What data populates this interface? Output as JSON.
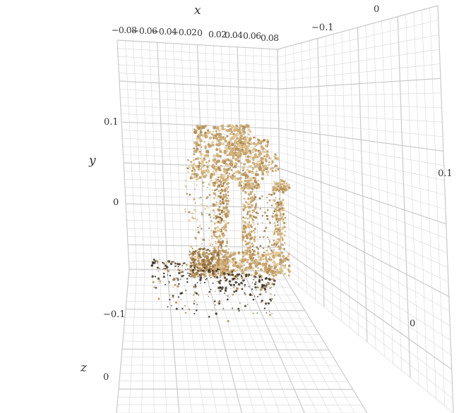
{
  "chart_data": {
    "type": "scatter",
    "subtype": "3d-point-cloud",
    "title": "",
    "axes": {
      "x": {
        "label": "x",
        "ticks": [
          "−0.08",
          "−0.06",
          "−0.04",
          "−0.02",
          "0",
          "0.02",
          "0.04",
          "0.06",
          "0.08"
        ]
      },
      "y": {
        "label": "y",
        "ticks": [
          "0.1",
          "0",
          "−0.1"
        ]
      },
      "z": {
        "label": "z",
        "ticks": [
          "0"
        ]
      },
      "right_back": {
        "ticks": [
          "0",
          "−0.1"
        ]
      },
      "right_side": {
        "ticks": [
          "0.1",
          "0"
        ]
      }
    },
    "grid": true,
    "grid_color": "#d6d6d6",
    "point_colors": [
      "#c8a66e",
      "#b08952",
      "#8a6a3c",
      "#e0c48e",
      "#3a3024"
    ],
    "subject": "ruined-temple-columns"
  }
}
